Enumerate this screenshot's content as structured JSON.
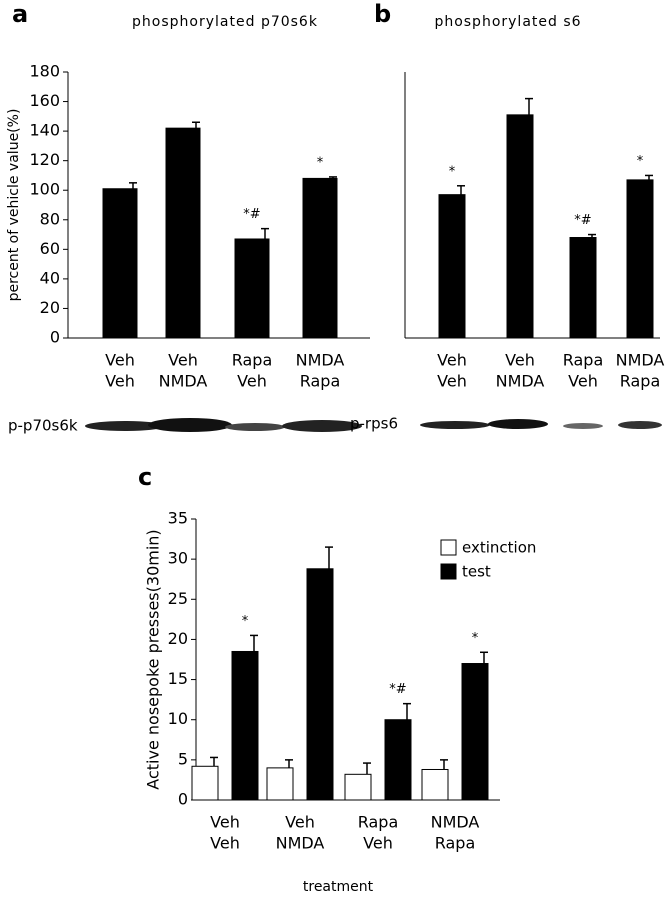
{
  "chart_data": [
    {
      "type": "bar",
      "panel": "a",
      "title": "phosphorylated p70s6k",
      "ylabel": "percent of vehicle value(%)",
      "categories": [
        [
          "Veh",
          "Veh"
        ],
        [
          "Veh",
          "NMDA"
        ],
        [
          "Rapa",
          "Veh"
        ],
        [
          "NMDA",
          "Rapa"
        ]
      ],
      "series": [
        {
          "color": "#000000",
          "values": [
            101,
            142,
            67,
            108
          ],
          "errors": [
            4,
            4,
            7,
            1
          ]
        }
      ],
      "annotations": [
        null,
        null,
        "*#",
        "*"
      ],
      "blot_label": "p-p70s6k",
      "ylim": [
        0,
        180
      ],
      "yticks": [
        0,
        20,
        40,
        60,
        80,
        100,
        120,
        140,
        160,
        180
      ]
    },
    {
      "type": "bar",
      "panel": "b",
      "title": "phosphorylated s6",
      "categories": [
        [
          "Veh",
          "Veh"
        ],
        [
          "Veh",
          "NMDA"
        ],
        [
          "Rapa",
          "Veh"
        ],
        [
          "NMDA",
          "Rapa"
        ]
      ],
      "series": [
        {
          "color": "#000000",
          "values": [
            97,
            151,
            68,
            107
          ],
          "errors": [
            6,
            11,
            2,
            3
          ]
        }
      ],
      "annotations": [
        "*",
        null,
        "*#",
        "*"
      ],
      "blot_label": "p-rps6",
      "ylim": [
        0,
        180
      ]
    },
    {
      "type": "bar",
      "panel": "c",
      "xlabel": "treatment",
      "ylabel": "Active nosepoke presses(30min)",
      "categories": [
        [
          "Veh",
          "Veh"
        ],
        [
          "Veh",
          "NMDA"
        ],
        [
          "Rapa",
          "Veh"
        ],
        [
          "NMDA",
          "Rapa"
        ]
      ],
      "series": [
        {
          "name": "extinction",
          "color": "#ffffff",
          "values": [
            4.2,
            4.0,
            3.2,
            3.8
          ],
          "errors": [
            1.1,
            1.0,
            1.4,
            1.2
          ]
        },
        {
          "name": "test",
          "color": "#000000",
          "values": [
            18.5,
            28.8,
            10.0,
            17.0
          ],
          "errors": [
            2.0,
            2.7,
            2.0,
            1.4
          ],
          "annotations": [
            "*",
            null,
            "*#",
            "*"
          ]
        }
      ],
      "ylim": [
        0,
        35
      ],
      "yticks": [
        0,
        5,
        10,
        15,
        20,
        25,
        30,
        35
      ]
    }
  ]
}
